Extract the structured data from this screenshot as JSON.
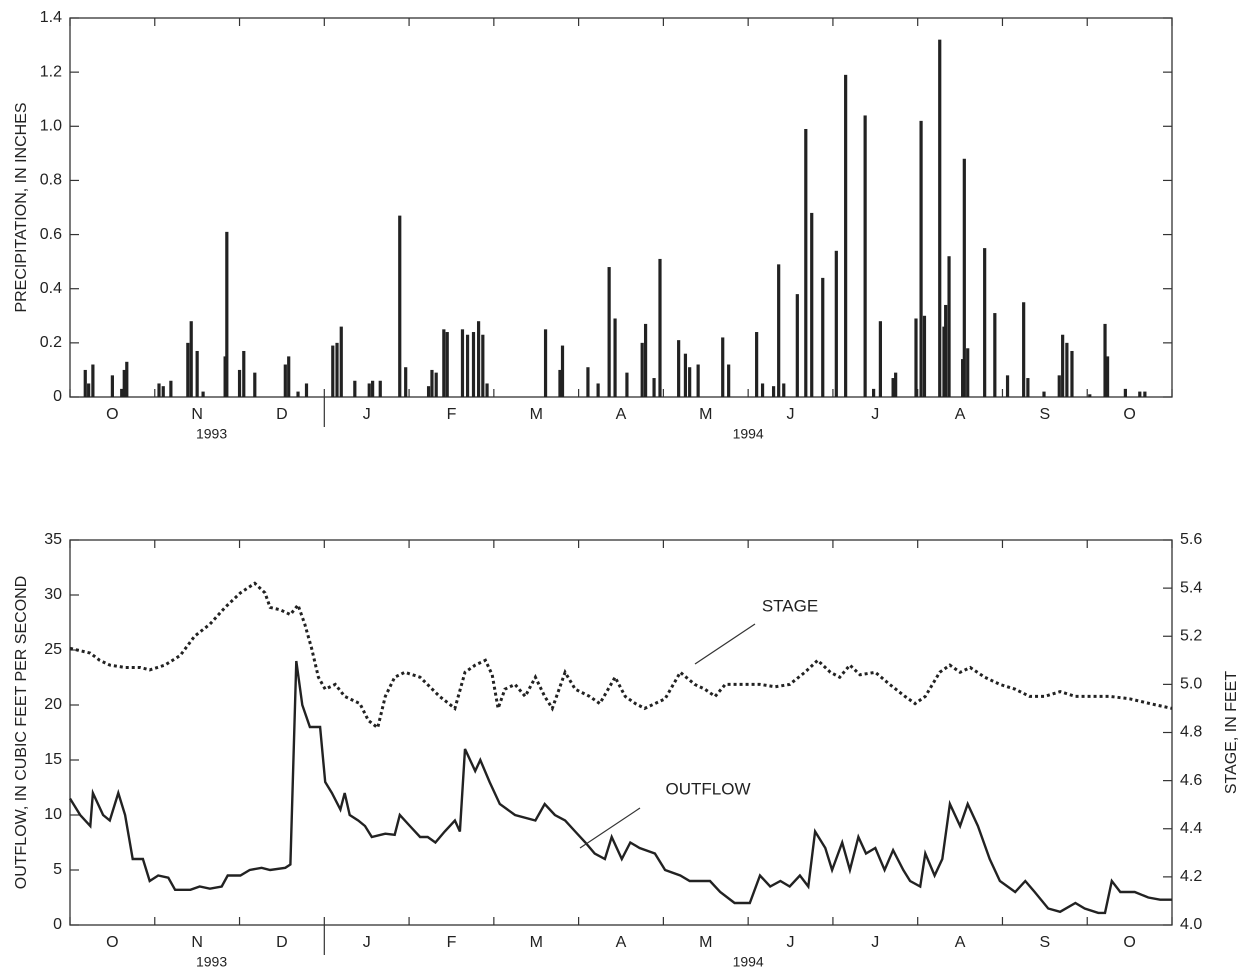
{
  "chart_data": [
    {
      "type": "bar",
      "y_label": "PRECIPITATION, IN INCHES",
      "color": "#222",
      "xlim": [
        0,
        13
      ],
      "xticks": [
        {
          "value": 0.5,
          "label": "O"
        },
        {
          "value": 1.5,
          "label": "N"
        },
        {
          "value": 2.5,
          "label": "D"
        },
        {
          "value": 3.5,
          "label": "J"
        },
        {
          "value": 4.5,
          "label": "F"
        },
        {
          "value": 5.5,
          "label": "M"
        },
        {
          "value": 6.5,
          "label": "A"
        },
        {
          "value": 7.5,
          "label": "M"
        },
        {
          "value": 8.5,
          "label": "J"
        },
        {
          "value": 9.5,
          "label": "J"
        },
        {
          "value": 10.5,
          "label": "A"
        },
        {
          "value": 11.5,
          "label": "S"
        },
        {
          "value": 12.5,
          "label": "O"
        }
      ],
      "year_labels": [
        {
          "value": 1.67,
          "label": "1993"
        },
        {
          "value": 8.0,
          "label": "1994"
        }
      ],
      "year_divider": 3,
      "ylim": [
        0,
        1.4
      ],
      "yticks": [
        0,
        0.2,
        0.4,
        0.6,
        0.8,
        {
          "value": 1,
          "label": "1.0"
        },
        1.2,
        1.4
      ],
      "x": [
        0.18,
        0.22,
        0.27,
        0.5,
        0.61,
        0.64,
        0.67,
        1.05,
        1.1,
        1.19,
        1.39,
        1.43,
        1.5,
        1.57,
        1.83,
        1.85,
        2.0,
        2.05,
        2.18,
        2.54,
        2.58,
        2.69,
        2.79,
        3.1,
        3.15,
        3.2,
        3.36,
        3.53,
        3.57,
        3.66,
        3.89,
        3.96,
        4.23,
        4.27,
        4.32,
        4.41,
        4.45,
        4.63,
        4.69,
        4.76,
        4.82,
        4.87,
        4.92,
        5.61,
        5.78,
        5.81,
        6.11,
        6.23,
        6.36,
        6.43,
        6.57,
        6.75,
        6.79,
        6.89,
        6.96,
        7.18,
        7.26,
        7.31,
        7.41,
        7.7,
        7.77,
        8.1,
        8.17,
        8.3,
        8.36,
        8.42,
        8.58,
        8.68,
        8.75,
        8.88,
        9.04,
        9.15,
        9.38,
        9.48,
        9.56,
        9.71,
        9.74,
        9.98,
        10.04,
        10.08,
        10.26,
        10.31,
        10.33,
        10.37,
        10.53,
        10.55,
        10.59,
        10.79,
        10.91,
        11.06,
        11.25,
        11.3,
        11.49,
        11.67,
        11.71,
        11.76,
        11.82,
        12.03,
        12.21,
        12.24,
        12.45,
        12.62,
        12.68
      ],
      "values": [
        0.1,
        0.05,
        0.12,
        0.08,
        0.03,
        0.1,
        0.13,
        0.05,
        0.04,
        0.06,
        0.2,
        0.28,
        0.17,
        0.02,
        0.15,
        0.61,
        0.1,
        0.17,
        0.09,
        0.12,
        0.15,
        0.02,
        0.05,
        0.19,
        0.2,
        0.26,
        0.06,
        0.05,
        0.06,
        0.06,
        0.67,
        0.11,
        0.04,
        0.1,
        0.09,
        0.25,
        0.24,
        0.25,
        0.23,
        0.24,
        0.28,
        0.23,
        0.05,
        0.25,
        0.1,
        0.19,
        0.11,
        0.05,
        0.48,
        0.29,
        0.09,
        0.2,
        0.27,
        0.07,
        0.51,
        0.21,
        0.16,
        0.11,
        0.12,
        0.22,
        0.12,
        0.24,
        0.05,
        0.04,
        0.49,
        0.05,
        0.38,
        0.99,
        0.68,
        0.44,
        0.54,
        1.19,
        1.04,
        0.03,
        0.28,
        0.07,
        0.09,
        0.29,
        1.02,
        0.3,
        1.32,
        0.26,
        0.34,
        0.52,
        0.14,
        0.88,
        0.18,
        0.55,
        0.31,
        0.08,
        0.35,
        0.07,
        0.02,
        0.08,
        0.23,
        0.2,
        0.17,
        0.01,
        0.27,
        0.15,
        0.03,
        0.02,
        0.02
      ]
    },
    {
      "type": "line",
      "y_label": "OUTFLOW, IN CUBIC FEET PER SECOND",
      "y2_label": "STAGE, IN FEET",
      "xlim": [
        0,
        13
      ],
      "xticks": [
        {
          "value": 0.5,
          "label": "O"
        },
        {
          "value": 1.5,
          "label": "N"
        },
        {
          "value": 2.5,
          "label": "D"
        },
        {
          "value": 3.5,
          "label": "J"
        },
        {
          "value": 4.5,
          "label": "F"
        },
        {
          "value": 5.5,
          "label": "M"
        },
        {
          "value": 6.5,
          "label": "A"
        },
        {
          "value": 7.5,
          "label": "M"
        },
        {
          "value": 8.5,
          "label": "J"
        },
        {
          "value": 9.5,
          "label": "J"
        },
        {
          "value": 10.5,
          "label": "A"
        },
        {
          "value": 11.5,
          "label": "S"
        },
        {
          "value": 12.5,
          "label": "O"
        }
      ],
      "year_labels": [
        {
          "value": 1.67,
          "label": "1993"
        },
        {
          "value": 8.0,
          "label": "1994"
        }
      ],
      "year_divider": 3,
      "ylim": [
        0,
        35
      ],
      "yticks": [
        0,
        5,
        10,
        15,
        20,
        25,
        30,
        35
      ],
      "y2lim": [
        4,
        5.6
      ],
      "y2ticks": [
        {
          "value": 4,
          "label": "4.0"
        },
        4.2,
        4.4,
        4.6,
        4.8,
        {
          "value": 5,
          "label": "5.0"
        },
        5.2,
        5.4,
        5.6
      ],
      "series": [
        {
          "name": "OUTFLOW",
          "color": "#222",
          "style": "solid",
          "x": [
            0,
            0.12,
            0.24,
            0.27,
            0.39,
            0.47,
            0.57,
            0.65,
            0.74,
            0.86,
            0.94,
            1.04,
            1.16,
            1.24,
            1.42,
            1.53,
            1.65,
            1.79,
            1.86,
            2.01,
            2.12,
            2.26,
            2.36,
            2.54,
            2.6,
            2.67,
            2.74,
            2.83,
            2.95,
            3.01,
            3.09,
            3.19,
            3.24,
            3.3,
            3.4,
            3.48,
            3.56,
            3.72,
            3.83,
            3.89,
            4.01,
            4.13,
            4.22,
            4.31,
            4.42,
            4.54,
            4.6,
            4.66,
            4.78,
            4.84,
            4.95,
            5.07,
            5.25,
            5.49,
            5.6,
            5.72,
            5.84,
            5.96,
            6.08,
            6.19,
            6.31,
            6.39,
            6.51,
            6.61,
            6.72,
            6.9,
            7.02,
            7.2,
            7.31,
            7.55,
            7.67,
            7.84,
            8.02,
            8.14,
            8.26,
            8.38,
            8.49,
            8.61,
            8.71,
            8.79,
            8.91,
            8.99,
            9.11,
            9.2,
            9.3,
            9.39,
            9.5,
            9.61,
            9.71,
            9.83,
            9.91,
            10.03,
            10.09,
            10.2,
            10.29,
            10.38,
            10.5,
            10.59,
            10.71,
            10.85,
            10.97,
            11.15,
            11.27,
            11.38,
            11.54,
            11.68,
            11.86,
            11.97,
            12.13,
            12.21,
            12.29,
            12.39,
            12.56,
            12.72,
            12.86,
            13
          ],
          "values": [
            11.5,
            10,
            9,
            12,
            10,
            9.5,
            12,
            10,
            6,
            6,
            4,
            4.5,
            4.3,
            3.2,
            3.2,
            3.5,
            3.3,
            3.5,
            4.5,
            4.5,
            5,
            5.2,
            5,
            5.2,
            5.5,
            24,
            20,
            18,
            18,
            13,
            12,
            10.5,
            12,
            10,
            9.5,
            9,
            8,
            8.3,
            8.2,
            10,
            9,
            8,
            8,
            7.5,
            8.5,
            9.5,
            8.5,
            16,
            14,
            15,
            13,
            11,
            10,
            9.5,
            11,
            10,
            9.5,
            8.5,
            7.5,
            6.5,
            6,
            8,
            6,
            7.5,
            7,
            6.5,
            5,
            4.5,
            4,
            4,
            3,
            2,
            2,
            4.5,
            3.5,
            4,
            3.5,
            4.5,
            3.5,
            8.5,
            7,
            5,
            7.5,
            5,
            8,
            6.5,
            7,
            5,
            6.8,
            5,
            4,
            3.5,
            6.5,
            4.5,
            6,
            11,
            9,
            11,
            9,
            6,
            4,
            3,
            4,
            3,
            1.5,
            1.2,
            2,
            1.5,
            1.1,
            1.1,
            4,
            3,
            3,
            2.5,
            2.3,
            2.3
          ]
        },
        {
          "name": "STAGE",
          "color": "#222",
          "style": "dotted",
          "axis": "y2",
          "x": [
            0,
            0.24,
            0.35,
            0.47,
            0.65,
            0.83,
            0.94,
            1.12,
            1.3,
            1.47,
            1.65,
            1.83,
            2.01,
            2.18,
            2.3,
            2.36,
            2.48,
            2.6,
            2.69,
            2.77,
            2.85,
            2.93,
            3.01,
            3.13,
            3.24,
            3.42,
            3.52,
            3.63,
            3.72,
            3.83,
            3.95,
            4.13,
            4.36,
            4.54,
            4.66,
            4.78,
            4.9,
            4.98,
            5.05,
            5.13,
            5.25,
            5.37,
            5.49,
            5.6,
            5.69,
            5.84,
            5.96,
            6.13,
            6.25,
            6.43,
            6.55,
            6.67,
            6.78,
            7.02,
            7.2,
            7.37,
            7.49,
            7.61,
            7.73,
            7.9,
            8.14,
            8.32,
            8.49,
            8.67,
            8.82,
            8.97,
            9.08,
            9.2,
            9.32,
            9.5,
            9.67,
            9.85,
            9.97,
            10.09,
            10.26,
            10.38,
            10.5,
            10.62,
            10.79,
            10.97,
            11.15,
            11.32,
            11.5,
            11.68,
            11.86,
            12.03,
            12.27,
            12.5,
            12.74,
            13
          ],
          "values": [
            5.15,
            5.13,
            5.1,
            5.08,
            5.07,
            5.07,
            5.06,
            5.08,
            5.12,
            5.2,
            5.25,
            5.32,
            5.38,
            5.42,
            5.38,
            5.32,
            5.31,
            5.29,
            5.33,
            5.25,
            5.15,
            5.03,
            4.98,
            5,
            4.95,
            4.92,
            4.85,
            4.82,
            4.95,
            5.03,
            5.05,
            5.03,
            4.95,
            4.9,
            5.05,
            5.08,
            5.1,
            5.04,
            4.9,
            4.98,
            5,
            4.95,
            5.03,
            4.95,
            4.9,
            5.05,
            4.98,
            4.95,
            4.92,
            5.03,
            4.95,
            4.92,
            4.9,
            4.94,
            5.05,
            5,
            4.98,
            4.95,
            5,
            5,
            5,
            4.99,
            5,
            5.05,
            5.1,
            5.05,
            5.03,
            5.08,
            5.04,
            5.05,
            5,
            4.95,
            4.92,
            4.95,
            5.05,
            5.08,
            5.05,
            5.07,
            5.03,
            5,
            4.98,
            4.95,
            4.95,
            4.97,
            4.95,
            4.95,
            4.95,
            4.94,
            4.92,
            4.9
          ]
        }
      ]
    }
  ]
}
